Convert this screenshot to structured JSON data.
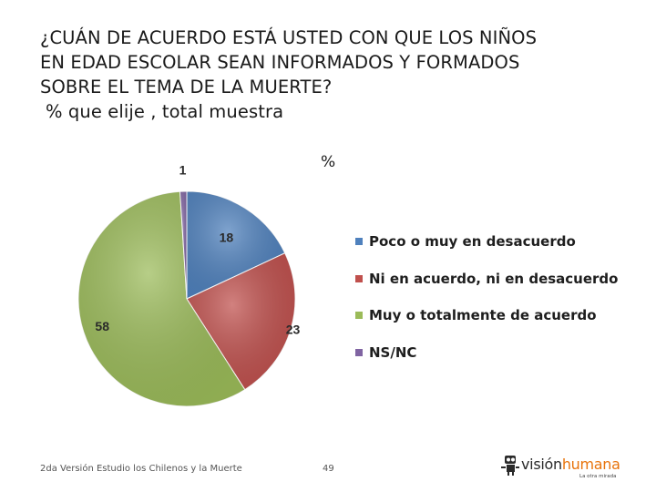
{
  "title": {
    "lines": [
      "¿CUÁN DE ACUERDO ESTÁ USTED CON QUE LOS NIÑOS",
      "EN EDAD ESCOLAR SEAN INFORMADOS Y FORMADOS",
      "SOBRE EL TEMA DE LA MUERTE?"
    ],
    "subtitle": "% que elije , total muestra"
  },
  "chart_data": {
    "type": "pie",
    "unit_label": "%",
    "slices": [
      {
        "label": "Poco o muy en desacuerdo",
        "value": 18,
        "color": "#4f81bd"
      },
      {
        "label": "Ni en acuerdo, ni en desacuerdo",
        "value": 23,
        "color": "#c0504d"
      },
      {
        "label": "Muy o totalmente de acuerdo",
        "value": 58,
        "color": "#9bbb59"
      },
      {
        "label": "NS/NC",
        "value": 1,
        "color": "#8064a2"
      }
    ],
    "legend_position": "right"
  },
  "footer": {
    "text": "2da Versión Estudio los Chilenos y la Muerte",
    "page_number": "49"
  },
  "logo": {
    "word_dark": "visión",
    "word_accent": "humana",
    "tagline": "La otra mirada"
  }
}
